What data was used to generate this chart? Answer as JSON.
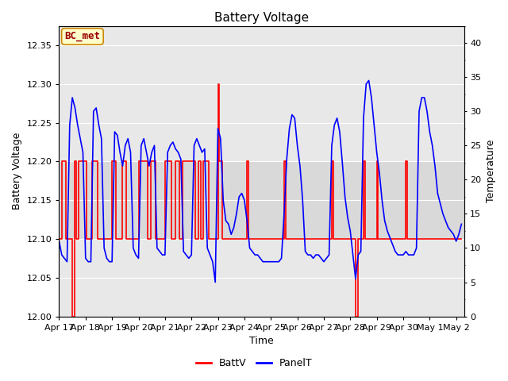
{
  "title": "Battery Voltage",
  "xlabel": "Time",
  "ylabel_left": "Battery Voltage",
  "ylabel_right": "Temperature",
  "ylim_left": [
    12.0,
    12.375
  ],
  "ylim_right": [
    0,
    42.5
  ],
  "fig_bg_color": "#ffffff",
  "plot_bg_color": "#e8e8e8",
  "band_color": "#d8d8d8",
  "legend_labels": [
    "BattV",
    "PanelT"
  ],
  "legend_colors": [
    "red",
    "blue"
  ],
  "annotation_text": "BC_met",
  "annotation_bg": "#ffffcc",
  "annotation_border": "#cc8800",
  "annotation_text_color": "#990000",
  "title_fontsize": 11,
  "label_fontsize": 9,
  "tick_fontsize": 8,
  "battv_color": "red",
  "panel_color": "blue",
  "grid_color": "#ffffff",
  "battv_lw": 1.2,
  "panel_lw": 1.2,
  "battv_data": [
    [
      17.0,
      12.1
    ],
    [
      17.05,
      12.1
    ],
    [
      17.1,
      12.2
    ],
    [
      17.15,
      12.2
    ],
    [
      17.2,
      12.2
    ],
    [
      17.25,
      12.1
    ],
    [
      17.3,
      12.1
    ],
    [
      17.5,
      12.0
    ],
    [
      17.55,
      12.0
    ],
    [
      17.6,
      12.2
    ],
    [
      17.65,
      12.1
    ],
    [
      17.7,
      12.1
    ],
    [
      17.75,
      12.2
    ],
    [
      17.8,
      12.2
    ],
    [
      18.0,
      12.2
    ],
    [
      18.05,
      12.1
    ],
    [
      18.1,
      12.1
    ],
    [
      18.15,
      12.1
    ],
    [
      18.2,
      12.1
    ],
    [
      18.25,
      12.2
    ],
    [
      18.3,
      12.2
    ],
    [
      18.35,
      12.2
    ],
    [
      18.4,
      12.2
    ],
    [
      18.45,
      12.1
    ],
    [
      18.5,
      12.1
    ],
    [
      18.55,
      12.1
    ],
    [
      18.6,
      12.1
    ],
    [
      18.65,
      12.1
    ],
    [
      18.7,
      12.1
    ],
    [
      19.0,
      12.2
    ],
    [
      19.05,
      12.2
    ],
    [
      19.1,
      12.2
    ],
    [
      19.15,
      12.1
    ],
    [
      19.2,
      12.1
    ],
    [
      19.25,
      12.1
    ],
    [
      19.3,
      12.1
    ],
    [
      19.4,
      12.2
    ],
    [
      19.45,
      12.2
    ],
    [
      19.5,
      12.2
    ],
    [
      19.55,
      12.1
    ],
    [
      19.6,
      12.1
    ],
    [
      19.65,
      12.1
    ],
    [
      19.7,
      12.1
    ],
    [
      20.0,
      12.2
    ],
    [
      20.05,
      12.2
    ],
    [
      20.1,
      12.2
    ],
    [
      20.15,
      12.2
    ],
    [
      20.2,
      12.2
    ],
    [
      20.25,
      12.2
    ],
    [
      20.3,
      12.2
    ],
    [
      20.35,
      12.1
    ],
    [
      20.4,
      12.1
    ],
    [
      20.45,
      12.2
    ],
    [
      20.5,
      12.2
    ],
    [
      20.55,
      12.2
    ],
    [
      20.6,
      12.2
    ],
    [
      20.65,
      12.1
    ],
    [
      20.7,
      12.1
    ],
    [
      21.0,
      12.2
    ],
    [
      21.05,
      12.2
    ],
    [
      21.1,
      12.2
    ],
    [
      21.15,
      12.2
    ],
    [
      21.2,
      12.2
    ],
    [
      21.25,
      12.1
    ],
    [
      21.3,
      12.1
    ],
    [
      21.4,
      12.2
    ],
    [
      21.45,
      12.2
    ],
    [
      21.5,
      12.2
    ],
    [
      21.55,
      12.1
    ],
    [
      21.6,
      12.1
    ],
    [
      21.65,
      12.2
    ],
    [
      21.7,
      12.2
    ],
    [
      22.0,
      12.2
    ],
    [
      22.05,
      12.2
    ],
    [
      22.1,
      12.2
    ],
    [
      22.15,
      12.1
    ],
    [
      22.2,
      12.1
    ],
    [
      22.25,
      12.2
    ],
    [
      22.3,
      12.2
    ],
    [
      22.35,
      12.1
    ],
    [
      22.4,
      12.1
    ],
    [
      22.45,
      12.2
    ],
    [
      22.5,
      12.2
    ],
    [
      22.55,
      12.2
    ],
    [
      22.6,
      12.2
    ],
    [
      22.65,
      12.1
    ],
    [
      22.7,
      12.1
    ],
    [
      23.0,
      12.3
    ],
    [
      23.05,
      12.2
    ],
    [
      23.1,
      12.2
    ],
    [
      23.15,
      12.1
    ],
    [
      23.2,
      12.1
    ],
    [
      23.25,
      12.1
    ],
    [
      23.3,
      12.1
    ],
    [
      23.4,
      12.1
    ],
    [
      23.5,
      12.1
    ],
    [
      23.6,
      12.1
    ],
    [
      23.7,
      12.1
    ],
    [
      24.0,
      12.1
    ],
    [
      24.05,
      12.1
    ],
    [
      24.1,
      12.2
    ],
    [
      24.15,
      12.1
    ],
    [
      24.2,
      12.1
    ],
    [
      24.3,
      12.1
    ],
    [
      24.4,
      12.1
    ],
    [
      24.5,
      12.1
    ],
    [
      24.6,
      12.1
    ],
    [
      24.7,
      12.1
    ],
    [
      25.0,
      12.1
    ],
    [
      25.1,
      12.1
    ],
    [
      25.2,
      12.1
    ],
    [
      25.3,
      12.1
    ],
    [
      25.4,
      12.1
    ],
    [
      25.5,
      12.2
    ],
    [
      25.55,
      12.1
    ],
    [
      25.6,
      12.1
    ],
    [
      25.7,
      12.1
    ],
    [
      26.0,
      12.1
    ],
    [
      26.1,
      12.1
    ],
    [
      26.2,
      12.1
    ],
    [
      26.3,
      12.1
    ],
    [
      26.4,
      12.1
    ],
    [
      26.5,
      12.1
    ],
    [
      26.6,
      12.1
    ],
    [
      26.7,
      12.1
    ],
    [
      27.0,
      12.1
    ],
    [
      27.1,
      12.1
    ],
    [
      27.2,
      12.1
    ],
    [
      27.3,
      12.2
    ],
    [
      27.35,
      12.1
    ],
    [
      27.4,
      12.1
    ],
    [
      27.5,
      12.1
    ],
    [
      27.6,
      12.1
    ],
    [
      27.7,
      12.1
    ],
    [
      28.0,
      12.1
    ],
    [
      28.1,
      12.1
    ],
    [
      28.2,
      12.0
    ],
    [
      28.3,
      12.1
    ],
    [
      28.4,
      12.1
    ],
    [
      28.5,
      12.2
    ],
    [
      28.55,
      12.1
    ],
    [
      28.6,
      12.1
    ],
    [
      28.7,
      12.1
    ],
    [
      29.0,
      12.2
    ],
    [
      29.05,
      12.1
    ],
    [
      29.1,
      12.1
    ],
    [
      29.2,
      12.1
    ],
    [
      29.3,
      12.1
    ],
    [
      29.4,
      12.1
    ],
    [
      29.5,
      12.1
    ],
    [
      29.6,
      12.1
    ],
    [
      29.7,
      12.1
    ],
    [
      30.0,
      12.1
    ],
    [
      30.1,
      12.2
    ],
    [
      30.15,
      12.1
    ],
    [
      30.2,
      12.1
    ],
    [
      30.3,
      12.1
    ],
    [
      30.4,
      12.1
    ],
    [
      30.5,
      12.1
    ],
    [
      30.6,
      12.1
    ],
    [
      30.7,
      12.1
    ],
    [
      31.0,
      12.1
    ],
    [
      31.1,
      12.1
    ],
    [
      31.2,
      12.1
    ],
    [
      31.3,
      12.1
    ],
    [
      32.0,
      12.1
    ],
    [
      32.1,
      12.1
    ],
    [
      32.2,
      12.1
    ]
  ],
  "panelt_data": [
    [
      17.0,
      11.0
    ],
    [
      17.05,
      10.0
    ],
    [
      17.1,
      9.0
    ],
    [
      17.2,
      8.5
    ],
    [
      17.3,
      8.0
    ],
    [
      17.4,
      28.0
    ],
    [
      17.5,
      32.0
    ],
    [
      17.6,
      30.5
    ],
    [
      17.7,
      28.0
    ],
    [
      17.8,
      26.0
    ],
    [
      17.9,
      24.0
    ],
    [
      18.0,
      8.5
    ],
    [
      18.1,
      8.0
    ],
    [
      18.2,
      8.0
    ],
    [
      18.3,
      30.0
    ],
    [
      18.4,
      30.5
    ],
    [
      18.5,
      28.0
    ],
    [
      18.6,
      26.0
    ],
    [
      18.7,
      10.0
    ],
    [
      18.8,
      8.5
    ],
    [
      18.9,
      8.0
    ],
    [
      19.0,
      8.0
    ],
    [
      19.1,
      27.0
    ],
    [
      19.2,
      26.5
    ],
    [
      19.3,
      24.0
    ],
    [
      19.4,
      22.0
    ],
    [
      19.5,
      25.0
    ],
    [
      19.6,
      26.0
    ],
    [
      19.7,
      24.0
    ],
    [
      19.8,
      10.0
    ],
    [
      19.9,
      9.0
    ],
    [
      20.0,
      8.5
    ],
    [
      20.1,
      25.0
    ],
    [
      20.2,
      26.0
    ],
    [
      20.3,
      24.0
    ],
    [
      20.4,
      22.0
    ],
    [
      20.5,
      24.0
    ],
    [
      20.6,
      25.0
    ],
    [
      20.7,
      10.0
    ],
    [
      20.8,
      9.5
    ],
    [
      20.9,
      9.0
    ],
    [
      21.0,
      9.0
    ],
    [
      21.1,
      24.0
    ],
    [
      21.2,
      25.0
    ],
    [
      21.3,
      25.5
    ],
    [
      21.4,
      24.5
    ],
    [
      21.5,
      24.0
    ],
    [
      21.6,
      23.0
    ],
    [
      21.7,
      9.5
    ],
    [
      21.8,
      9.0
    ],
    [
      21.9,
      8.5
    ],
    [
      22.0,
      9.0
    ],
    [
      22.1,
      25.0
    ],
    [
      22.2,
      26.0
    ],
    [
      22.3,
      25.0
    ],
    [
      22.4,
      24.0
    ],
    [
      22.5,
      24.5
    ],
    [
      22.6,
      10.0
    ],
    [
      22.7,
      9.0
    ],
    [
      22.8,
      8.0
    ],
    [
      22.9,
      5.0
    ],
    [
      23.0,
      27.5
    ],
    [
      23.1,
      26.0
    ],
    [
      23.2,
      17.0
    ],
    [
      23.3,
      14.0
    ],
    [
      23.4,
      13.5
    ],
    [
      23.5,
      12.0
    ],
    [
      23.6,
      13.0
    ],
    [
      23.7,
      15.0
    ],
    [
      23.8,
      17.5
    ],
    [
      23.9,
      18.0
    ],
    [
      24.0,
      17.0
    ],
    [
      24.1,
      14.0
    ],
    [
      24.2,
      10.0
    ],
    [
      24.3,
      9.5
    ],
    [
      24.4,
      9.0
    ],
    [
      24.5,
      9.0
    ],
    [
      24.6,
      8.5
    ],
    [
      24.7,
      8.0
    ],
    [
      24.8,
      8.0
    ],
    [
      24.9,
      8.0
    ],
    [
      25.0,
      8.0
    ],
    [
      25.1,
      8.0
    ],
    [
      25.2,
      8.0
    ],
    [
      25.3,
      8.0
    ],
    [
      25.4,
      8.5
    ],
    [
      25.5,
      15.0
    ],
    [
      25.6,
      23.0
    ],
    [
      25.7,
      27.5
    ],
    [
      25.8,
      29.5
    ],
    [
      25.9,
      29.0
    ],
    [
      26.0,
      25.0
    ],
    [
      26.1,
      22.0
    ],
    [
      26.2,
      17.0
    ],
    [
      26.3,
      9.5
    ],
    [
      26.4,
      9.0
    ],
    [
      26.5,
      9.0
    ],
    [
      26.6,
      8.5
    ],
    [
      26.7,
      9.0
    ],
    [
      26.8,
      9.0
    ],
    [
      26.9,
      8.5
    ],
    [
      27.0,
      8.0
    ],
    [
      27.1,
      8.5
    ],
    [
      27.2,
      9.0
    ],
    [
      27.3,
      25.0
    ],
    [
      27.4,
      28.0
    ],
    [
      27.5,
      29.0
    ],
    [
      27.6,
      27.0
    ],
    [
      27.7,
      22.5
    ],
    [
      27.8,
      17.5
    ],
    [
      27.9,
      14.5
    ],
    [
      28.0,
      12.5
    ],
    [
      28.1,
      9.0
    ],
    [
      28.2,
      5.5
    ],
    [
      28.3,
      9.0
    ],
    [
      28.4,
      9.5
    ],
    [
      28.5,
      29.0
    ],
    [
      28.6,
      34.0
    ],
    [
      28.7,
      34.5
    ],
    [
      28.8,
      32.0
    ],
    [
      28.9,
      28.0
    ],
    [
      29.0,
      24.0
    ],
    [
      29.1,
      21.0
    ],
    [
      29.2,
      17.0
    ],
    [
      29.3,
      14.0
    ],
    [
      29.4,
      12.5
    ],
    [
      29.5,
      11.5
    ],
    [
      29.6,
      10.5
    ],
    [
      29.7,
      9.5
    ],
    [
      29.8,
      9.0
    ],
    [
      29.9,
      9.0
    ],
    [
      30.0,
      9.0
    ],
    [
      30.1,
      9.5
    ],
    [
      30.2,
      9.0
    ],
    [
      30.3,
      9.0
    ],
    [
      30.4,
      9.0
    ],
    [
      30.5,
      10.0
    ],
    [
      30.6,
      30.0
    ],
    [
      30.7,
      32.0
    ],
    [
      30.8,
      32.0
    ],
    [
      30.9,
      30.0
    ],
    [
      31.0,
      27.0
    ],
    [
      31.1,
      25.0
    ],
    [
      31.2,
      22.0
    ],
    [
      31.3,
      18.0
    ],
    [
      31.5,
      15.0
    ],
    [
      31.7,
      13.0
    ],
    [
      31.9,
      12.0
    ],
    [
      32.0,
      11.0
    ],
    [
      32.1,
      12.0
    ],
    [
      32.2,
      13.5
    ]
  ],
  "xticks": [
    17,
    18,
    19,
    20,
    21,
    22,
    23,
    24,
    25,
    26,
    27,
    28,
    29,
    30,
    31,
    32
  ],
  "xtick_labels": [
    "Apr 17",
    "Apr 18",
    "Apr 19",
    "Apr 20",
    "Apr 21",
    "Apr 22",
    "Apr 23",
    "Apr 24",
    "Apr 25",
    "Apr 26",
    "Apr 27",
    "Apr 28",
    "Apr 29",
    "Apr 30",
    "May 1",
    "May 2"
  ],
  "yticks_left": [
    12.0,
    12.05,
    12.1,
    12.15,
    12.2,
    12.25,
    12.3,
    12.35
  ],
  "yticks_right": [
    0,
    5,
    10,
    15,
    20,
    25,
    30,
    35,
    40
  ],
  "xlim": [
    17,
    32.3
  ]
}
